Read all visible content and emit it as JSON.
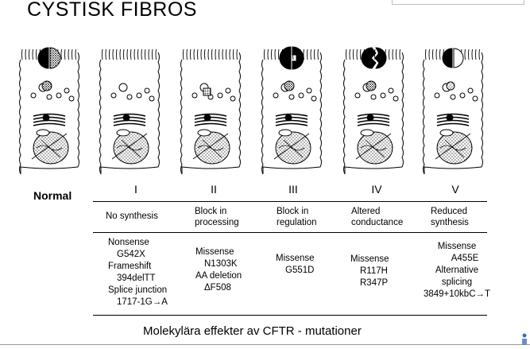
{
  "slide": {
    "title": "CYSTISK FIBROS",
    "caption": "Molekylära effekter av CFTR - mutationer",
    "normal_label": "Normal"
  },
  "classes": [
    {
      "numeral": "I",
      "header": [
        "No synthesis"
      ],
      "mutations": [
        "Nonsense",
        "G542X",
        "Frameshift",
        "394delTT",
        "Splice junction",
        "1717-1G→A"
      ]
    },
    {
      "numeral": "II",
      "header": [
        "Block in",
        "processing"
      ],
      "mutations": [
        "Missense",
        "N1303K",
        "AA deletion",
        "ΔF508"
      ]
    },
    {
      "numeral": "III",
      "header": [
        "Block in",
        "regulation"
      ],
      "mutations": [
        "Missense",
        "G551D"
      ]
    },
    {
      "numeral": "IV",
      "header": [
        "Altered",
        "conductance"
      ],
      "mutations": [
        "Missense",
        "R117H",
        "R347P"
      ]
    },
    {
      "numeral": "V",
      "header": [
        "Reduced",
        "synthesis"
      ],
      "mutations": [
        "Missense",
        "A455E",
        "Alternative",
        "splicing",
        "3849+10kbC→T"
      ]
    }
  ]
}
